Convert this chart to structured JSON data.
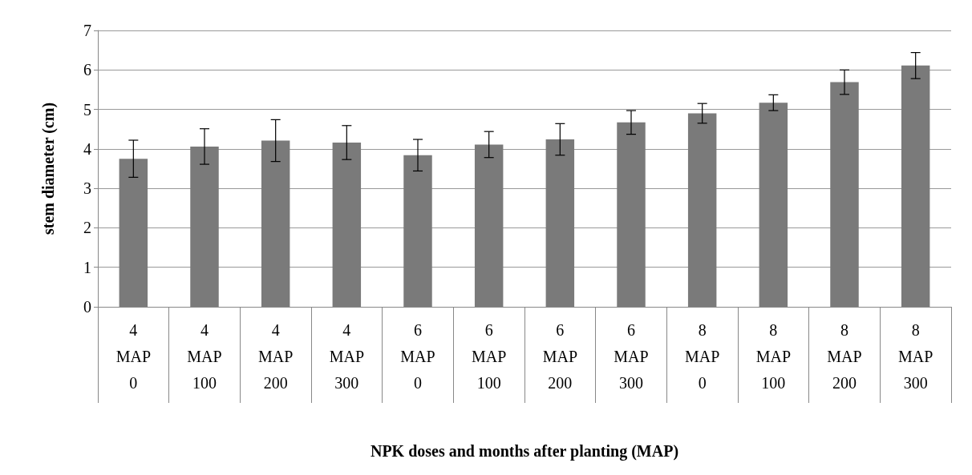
{
  "chart_data": {
    "type": "bar",
    "xlabel": "NPK doses and months after planting (MAP)",
    "ylabel": "stem diameter (cm)",
    "categories": [
      "4\nMAP\n0",
      "4\nMAP\n100",
      "4\nMAP\n200",
      "4\nMAP\n300",
      "6\nMAP\n0",
      "6\nMAP\n100",
      "6\nMAP\n200",
      "6\nMAP\n300",
      "8\nMAP\n0",
      "8\nMAP\n100",
      "8\nMAP\n200",
      "8\nMAP\n300"
    ],
    "values": [
      3.75,
      4.06,
      4.21,
      4.16,
      3.84,
      4.11,
      4.24,
      4.67,
      4.9,
      5.17,
      5.69,
      6.11
    ],
    "errors": [
      0.47,
      0.45,
      0.53,
      0.43,
      0.4,
      0.33,
      0.4,
      0.3,
      0.25,
      0.2,
      0.31,
      0.33
    ],
    "color": "#7a7a7a",
    "ylim": [
      0,
      7
    ],
    "yticks": [
      0,
      1,
      2,
      3,
      4,
      5,
      6,
      7
    ],
    "grid": "y"
  }
}
